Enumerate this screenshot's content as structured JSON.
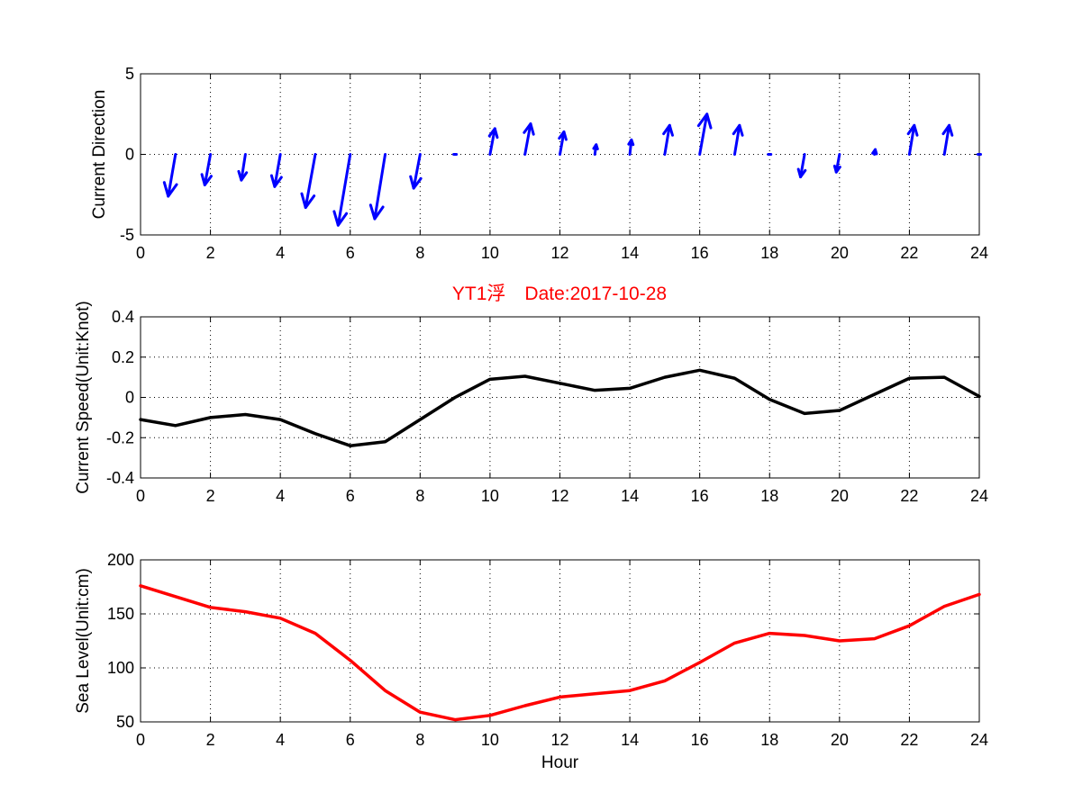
{
  "figure_title": "YT1浮　Date:2017-10-28",
  "colors": {
    "direction": "#0000ff",
    "speed": "#000000",
    "sea_level": "#ff0000",
    "title": "#ff0000"
  },
  "chart_data": [
    {
      "type": "quiver",
      "ylabel": "Current Direction",
      "xlabel": "",
      "xlim": [
        0,
        24
      ],
      "ylim": [
        -5,
        5
      ],
      "x_ticks": [
        "0",
        "2",
        "4",
        "6",
        "8",
        "10",
        "12",
        "14",
        "16",
        "18",
        "20",
        "22",
        "24"
      ],
      "y_ticks": [
        "5",
        "0",
        "-5"
      ],
      "grid": true,
      "vectors": [
        {
          "x": 1,
          "u": -0.45,
          "v": -2.6
        },
        {
          "x": 2,
          "u": -0.35,
          "v": -1.9
        },
        {
          "x": 3,
          "u": -0.25,
          "v": -1.6
        },
        {
          "x": 4,
          "u": -0.35,
          "v": -2.0
        },
        {
          "x": 5,
          "u": -0.6,
          "v": -3.3
        },
        {
          "x": 6,
          "u": -0.75,
          "v": -4.4
        },
        {
          "x": 7,
          "u": -0.65,
          "v": -4.0
        },
        {
          "x": 8,
          "u": -0.4,
          "v": -2.1
        },
        {
          "x": 9,
          "u": 0,
          "v": 0
        },
        {
          "x": 10,
          "u": 0.3,
          "v": 1.6
        },
        {
          "x": 11,
          "u": 0.35,
          "v": 1.9
        },
        {
          "x": 12,
          "u": 0.25,
          "v": 1.4
        },
        {
          "x": 13,
          "u": 0.08,
          "v": 0.6
        },
        {
          "x": 14,
          "u": 0.1,
          "v": 0.9
        },
        {
          "x": 15,
          "u": 0.3,
          "v": 1.8
        },
        {
          "x": 16,
          "u": 0.45,
          "v": 2.5
        },
        {
          "x": 17,
          "u": 0.3,
          "v": 1.8
        },
        {
          "x": 18,
          "u": 0.02,
          "v": -0.05
        },
        {
          "x": 19,
          "u": -0.25,
          "v": -1.4
        },
        {
          "x": 20,
          "u": -0.2,
          "v": -1.1
        },
        {
          "x": 21,
          "u": 0.05,
          "v": 0.3
        },
        {
          "x": 22,
          "u": 0.3,
          "v": 1.8
        },
        {
          "x": 23,
          "u": 0.3,
          "v": 1.8
        },
        {
          "x": 24,
          "u": 0.02,
          "v": 0.05
        }
      ]
    },
    {
      "type": "line",
      "ylabel": "Current Speed(Unit:Knot)",
      "xlabel": "",
      "xlim": [
        0,
        24
      ],
      "ylim": [
        -0.4,
        0.4
      ],
      "x_ticks": [
        "0",
        "2",
        "4",
        "6",
        "8",
        "10",
        "12",
        "14",
        "16",
        "18",
        "20",
        "22",
        "24"
      ],
      "y_ticks": [
        "0.4",
        "0.2",
        "0",
        "-0.2",
        "-0.4"
      ],
      "grid": true,
      "x": [
        0,
        1,
        2,
        3,
        4,
        5,
        6,
        7,
        8,
        9,
        10,
        11,
        12,
        13,
        14,
        15,
        16,
        17,
        18,
        19,
        20,
        21,
        22,
        23,
        24
      ],
      "values": [
        -0.11,
        -0.14,
        -0.1,
        -0.085,
        -0.11,
        -0.18,
        -0.24,
        -0.22,
        -0.11,
        0.0,
        0.09,
        0.105,
        0.07,
        0.035,
        0.045,
        0.1,
        0.135,
        0.095,
        -0.01,
        -0.08,
        -0.065,
        0.015,
        0.095,
        0.1,
        0.005
      ]
    },
    {
      "type": "line",
      "ylabel": "Sea Level(Unit:cm)",
      "xlabel": "Hour",
      "xlim": [
        0,
        24
      ],
      "ylim": [
        50,
        200
      ],
      "x_ticks": [
        "0",
        "2",
        "4",
        "6",
        "8",
        "10",
        "12",
        "14",
        "16",
        "18",
        "20",
        "22",
        "24"
      ],
      "y_ticks": [
        "200",
        "150",
        "100",
        "50"
      ],
      "grid": true,
      "x": [
        0,
        1,
        2,
        3,
        4,
        5,
        6,
        7,
        8,
        9,
        10,
        11,
        12,
        13,
        14,
        15,
        16,
        17,
        18,
        19,
        20,
        21,
        22,
        23,
        24
      ],
      "values": [
        176,
        166,
        156,
        152,
        146,
        132,
        107,
        79,
        59,
        52,
        56,
        65,
        73,
        76,
        79,
        88,
        105,
        123,
        132,
        130,
        125,
        127,
        139,
        157,
        168
      ]
    }
  ]
}
